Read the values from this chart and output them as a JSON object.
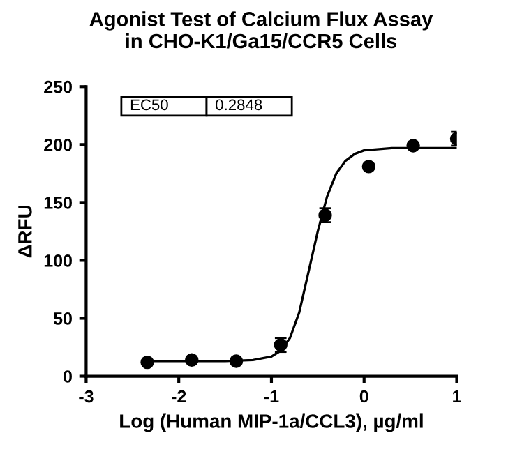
{
  "chart_data": {
    "type": "scatter",
    "title": "Agonist Test of Calcium Flux Assay\nin CHO-K1/Ga15/CCR5 Cells",
    "xlabel": "Log (Human MIP-1a/CCL3), µg/ml",
    "ylabel": "ΔRFU",
    "annotations": [
      "EC50",
      "0.2848"
    ],
    "series": [
      {
        "color": "#000000",
        "marker": "circle",
        "x": [
          -2.34,
          -1.86,
          -1.38,
          -0.9,
          -0.42,
          0.05,
          0.53,
          1.0
        ],
        "values": [
          12,
          14,
          13,
          27,
          139,
          181,
          199,
          205
        ],
        "errors": [
          null,
          null,
          null,
          6,
          6,
          null,
          null,
          6
        ]
      },
      {
        "type": "line",
        "color": "#000000",
        "marker": "none",
        "x": [
          -2.34,
          -1.5,
          -1.2,
          -1.0,
          -0.9,
          -0.8,
          -0.7,
          -0.6,
          -0.5,
          -0.4,
          -0.3,
          -0.2,
          -0.1,
          0.0,
          0.3,
          1.0
        ],
        "values": [
          13,
          13,
          14,
          17,
          22,
          33,
          55,
          90,
          125,
          155,
          175,
          186,
          192,
          195,
          197,
          197
        ]
      }
    ],
    "xlim": [
      -3,
      1
    ],
    "xticks": [
      -3,
      -2,
      -1,
      0,
      1
    ],
    "ylim": [
      0,
      250
    ],
    "yticks": [
      0,
      50,
      100,
      150,
      200,
      250
    ],
    "grid": false
  }
}
